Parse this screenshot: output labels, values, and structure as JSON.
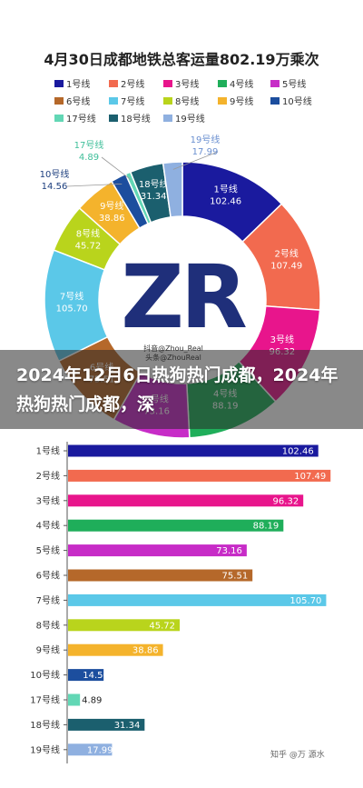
{
  "headline": "2024年12月6日热狗热门成都，2024年热狗热门成都，深",
  "logo_text": "ZR",
  "logo_caption_1": "抖音@Zhou_Real",
  "logo_caption_2": "头条@ZhouReal",
  "watermark": "知乎 @万 源水",
  "colors": {
    "background": "#ffffff",
    "overlay": "#2c2c2c"
  },
  "chart_data": [
    {
      "type": "pie",
      "title": "4月30日成都地铁总客运量802.19万乘次",
      "variant": "donut",
      "categories": [
        "1号线",
        "2号线",
        "3号线",
        "4号线",
        "5号线",
        "6号线",
        "7号线",
        "8号线",
        "9号线",
        "10号线",
        "17号线",
        "18号线",
        "19号线"
      ],
      "values": [
        102.46,
        107.49,
        96.32,
        88.19,
        73.16,
        75.51,
        105.7,
        45.72,
        38.86,
        14.56,
        4.89,
        31.34,
        17.99
      ],
      "colors": [
        "#1a1a9e",
        "#f26a4f",
        "#e8158c",
        "#1fae5a",
        "#c72cc7",
        "#b5682a",
        "#5bc8e8",
        "#b9d41c",
        "#f4b32c",
        "#1c4e9e",
        "#62d7b5",
        "#1b5f6e",
        "#8fb0e0"
      ],
      "legend_position": "top"
    },
    {
      "type": "bar",
      "orientation": "horizontal",
      "categories": [
        "1号线",
        "2号线",
        "3号线",
        "4号线",
        "5号线",
        "6号线",
        "7号线",
        "8号线",
        "9号线",
        "10号线",
        "17号线",
        "18号线",
        "19号线"
      ],
      "values": [
        102.46,
        107.49,
        96.32,
        88.19,
        73.16,
        75.51,
        105.7,
        45.72,
        38.86,
        14.56,
        4.89,
        31.34,
        17.99
      ],
      "colors": [
        "#1a1a9e",
        "#f26a4f",
        "#e8158c",
        "#1fae5a",
        "#c72cc7",
        "#b5682a",
        "#5bc8e8",
        "#b9d41c",
        "#f4b32c",
        "#1c4e9e",
        "#62d7b5",
        "#1b5f6e",
        "#8fb0e0"
      ],
      "xlim": [
        0,
        110
      ],
      "grid": false
    }
  ]
}
